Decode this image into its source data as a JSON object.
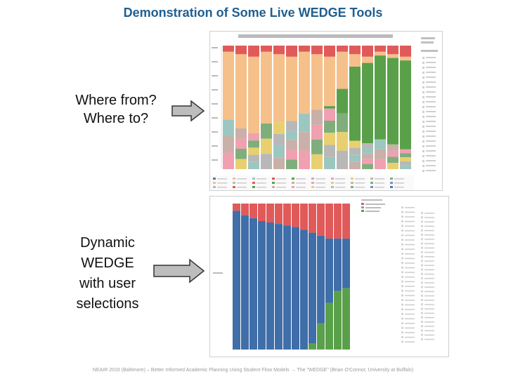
{
  "slide": {
    "title": "Demonstration of Some Live WEDGE Tools",
    "label_where_from": "Where from?",
    "label_where_to": "Where to?",
    "label_dynamic": "Dynamic",
    "label_wedge": "WEDGE",
    "label_with_user": "with user",
    "label_selections": "selections",
    "footer": "NEAIR 2016 (Baltimore) – Better Informed Academic Planning Using Student Flow Models → The \"WEDGE\" (Brian O'Connor, University at Buffalo)"
  },
  "colors": {
    "title": "#1f5f8f",
    "peach": "#f6c08a",
    "green": "#5aa04a",
    "red": "#e05a5a",
    "blue": "#3f6ea8",
    "gray": "#9a9a9a"
  },
  "icons": [
    "right-arrow-icon",
    "right-arrow-icon"
  ]
}
